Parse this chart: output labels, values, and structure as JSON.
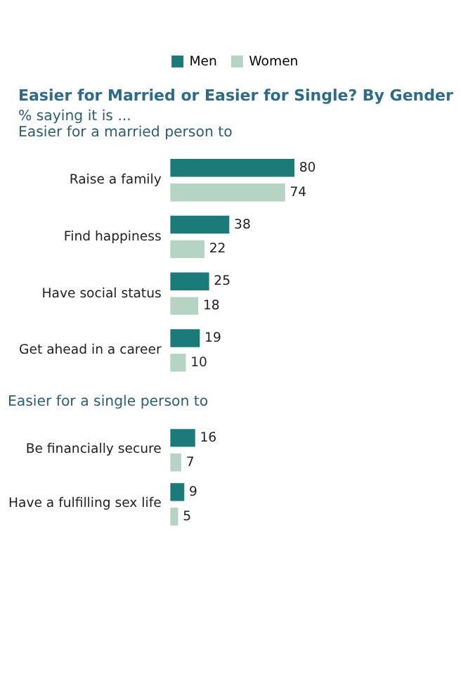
{
  "chart_data": [
    {
      "type": "bar",
      "orientation": "horizontal",
      "title": "Easier for Married or Easier for Single? By Gender",
      "subtitle": "% saying it is ...",
      "annotations": [
        "Easier for a married person to"
      ],
      "categories": [
        "Raise a family",
        "Find happiness",
        "Have social status",
        "Get ahead in a career"
      ],
      "series": [
        {
          "name": "Men",
          "color": "#1b7b78",
          "values": [
            80,
            38,
            25,
            19
          ]
        },
        {
          "name": "Women",
          "color": "#b6d4c3",
          "values": [
            74,
            22,
            18,
            10
          ]
        }
      ],
      "data_labels": true,
      "legend": "top",
      "grid": false
    },
    {
      "type": "bar",
      "orientation": "horizontal",
      "annotations": [
        "Easier for a single person to"
      ],
      "categories": [
        "Be financially secure",
        "Have a fulfilling sex life"
      ],
      "series": [
        {
          "name": "Men",
          "color": "#1b7b78",
          "values": [
            16,
            9
          ]
        },
        {
          "name": "Women",
          "color": "#b6d4c3",
          "values": [
            7,
            5
          ]
        }
      ],
      "data_labels": true,
      "legend": false,
      "grid": false
    }
  ]
}
